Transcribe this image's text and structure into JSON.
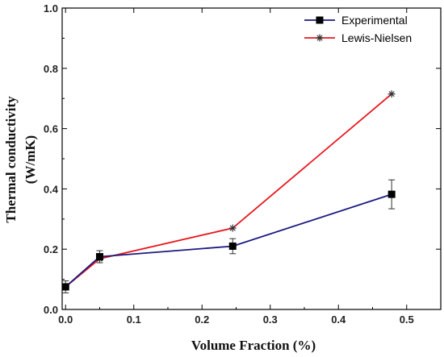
{
  "chart_data": {
    "type": "line",
    "xlabel": "Volume Fraction (%)",
    "ylabel_lines": [
      "Thermal conductivity",
      "(W/mK)"
    ],
    "xlim": [
      -0.005,
      0.55
    ],
    "ylim": [
      0.0,
      1.0
    ],
    "xticks": [
      0.0,
      0.1,
      0.2,
      0.3,
      0.4,
      0.5
    ],
    "xtick_labels": [
      "0.0",
      "0.1",
      "0.2",
      "0.3",
      "0.4",
      "0.5"
    ],
    "yticks": [
      0.0,
      0.2,
      0.4,
      0.6,
      0.8,
      1.0
    ],
    "ytick_labels": [
      "0.0",
      "0.2",
      "0.4",
      "0.6",
      "0.8",
      "1.0"
    ],
    "grid": false,
    "legend_position": "top-right",
    "series": [
      {
        "name": "Experimental",
        "color": "#1a1a80",
        "marker": "square",
        "x": [
          0.0,
          0.05,
          0.245,
          0.478
        ],
        "y": [
          0.075,
          0.175,
          0.21,
          0.382
        ],
        "yerr": [
          0.02,
          0.02,
          0.025,
          0.048
        ]
      },
      {
        "name": "Lewis-Nielsen",
        "color": "#e8171d",
        "marker": "asterisk",
        "x": [
          0.0,
          0.05,
          0.245,
          0.478
        ],
        "y": [
          0.075,
          0.168,
          0.27,
          0.715
        ]
      }
    ]
  }
}
